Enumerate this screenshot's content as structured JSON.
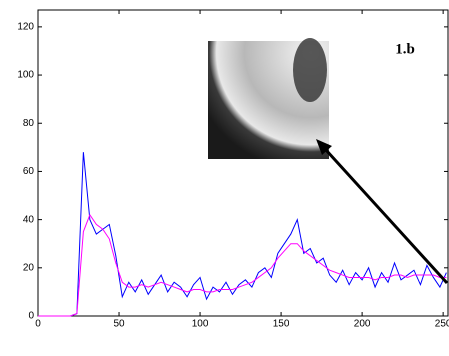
{
  "chart_data": {
    "type": "line",
    "annotation": "1.b",
    "x": [
      0,
      4,
      8,
      12,
      16,
      20,
      24,
      28,
      32,
      36,
      40,
      44,
      48,
      52,
      56,
      60,
      64,
      68,
      72,
      76,
      80,
      84,
      88,
      92,
      96,
      100,
      104,
      108,
      112,
      116,
      120,
      124,
      128,
      132,
      136,
      140,
      144,
      148,
      152,
      156,
      160,
      164,
      168,
      172,
      176,
      180,
      184,
      188,
      192,
      196,
      200,
      204,
      208,
      212,
      216,
      220,
      224,
      228,
      232,
      236,
      240,
      244,
      248,
      252
    ],
    "series": [
      {
        "color": "#0000ff",
        "values": [
          0,
          0,
          0,
          0,
          0,
          0,
          1,
          68,
          40,
          34,
          36,
          38,
          25,
          8,
          14,
          10,
          15,
          9,
          13,
          17,
          10,
          14,
          12,
          8,
          13,
          16,
          7,
          12,
          10,
          14,
          9,
          13,
          15,
          12,
          18,
          20,
          16,
          26,
          30,
          34,
          40,
          26,
          28,
          22,
          24,
          17,
          14,
          19,
          13,
          18,
          15,
          20,
          12,
          18,
          14,
          22,
          15,
          17,
          19,
          13,
          21,
          16,
          12,
          18
        ]
      },
      {
        "color": "#ff00ff",
        "values": [
          0,
          0,
          0,
          0,
          0,
          0,
          1,
          35,
          42,
          38,
          36,
          32,
          22,
          14,
          12,
          12,
          13,
          12,
          13,
          14,
          13,
          12,
          11,
          10,
          11,
          11,
          10,
          10,
          11,
          11,
          11,
          12,
          13,
          14,
          16,
          18,
          20,
          24,
          27,
          30,
          30,
          27,
          25,
          23,
          21,
          19,
          18,
          17,
          16,
          16,
          16,
          16,
          15,
          16,
          16,
          17,
          17,
          16,
          17,
          17,
          17,
          17,
          16,
          16
        ]
      }
    ],
    "xlim": [
      0,
      253
    ],
    "xticks": [
      0,
      50,
      100,
      150,
      200,
      250
    ],
    "ylim": [
      0,
      127
    ],
    "yticks": [
      0,
      20,
      40,
      60,
      80,
      100,
      120
    ]
  }
}
